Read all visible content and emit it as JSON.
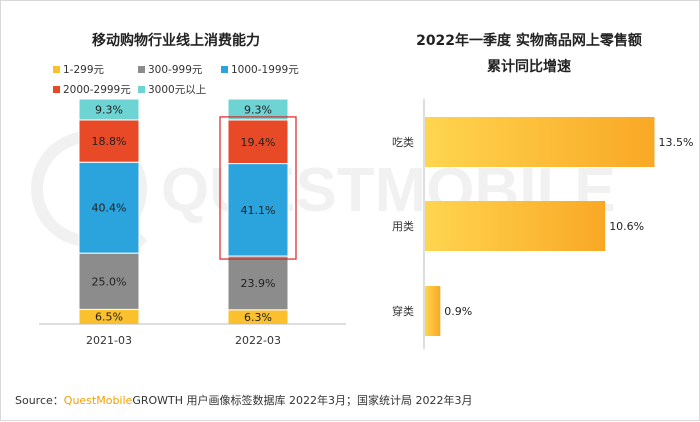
{
  "source": {
    "prefix": "Source：",
    "brand": "QuestMobile",
    "text": "GROWTH 用户画像标签数据库 2022年3月；国家统计局 2022年3月"
  },
  "watermark": "QUESTMOBILE",
  "colors": {
    "seg_1_299": "#fbc02d",
    "seg_300_999": "#8c8c8c",
    "seg_1000_1999": "#2ba3dd",
    "seg_2000_2999": "#e84a27",
    "seg_3000_plus": "#6ed3d3",
    "highlight_box": "#e02020",
    "hbar_light": "#ffd54f",
    "hbar_dark": "#f9a825"
  },
  "chart_data": [
    {
      "type": "bar",
      "stacked": true,
      "title": "移动购物行业线上消费能力",
      "categories": [
        "2021-03",
        "2022-03"
      ],
      "series": [
        {
          "name": "1-299元",
          "values": [
            6.5,
            6.3
          ]
        },
        {
          "name": "300-999元",
          "values": [
            25.0,
            23.9
          ]
        },
        {
          "name": "1000-1999元",
          "values": [
            40.4,
            41.1
          ]
        },
        {
          "name": "2000-2999元",
          "values": [
            18.8,
            19.4
          ]
        },
        {
          "name": "3000元以上",
          "values": [
            9.3,
            9.3
          ]
        }
      ],
      "labels": [
        [
          "6.5%",
          "25.0%",
          "40.4%",
          "18.8%",
          "9.3%"
        ],
        [
          "6.3%",
          "23.9%",
          "41.1%",
          "19.4%",
          "9.3%"
        ]
      ],
      "ylim": [
        0,
        100
      ],
      "highlight": {
        "category": "2022-03",
        "series": [
          "1000-1999元",
          "2000-2999元"
        ]
      },
      "legend": "top"
    },
    {
      "type": "bar",
      "orientation": "horizontal",
      "title": "2022年一季度 实物商品网上零售额",
      "subtitle": "累计同比增速",
      "categories": [
        "吃类",
        "用类",
        "穿类"
      ],
      "values": [
        13.5,
        10.6,
        0.9
      ],
      "labels": [
        "13.5%",
        "10.6%",
        "0.9%"
      ],
      "xlim": [
        0,
        15
      ]
    }
  ]
}
